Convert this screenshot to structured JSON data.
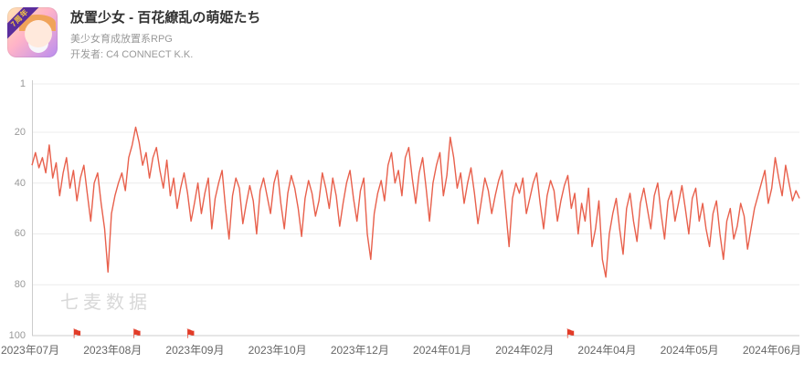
{
  "header": {
    "app_title": "放置少女 - 百花繚乱の萌姫たち",
    "app_subtitle": "美少女育成放置系RPG",
    "developer": "开发者: C4 CONNECT K.K.",
    "icon_badge": "7周年"
  },
  "watermark": "七麦数据",
  "chart_data": {
    "type": "line",
    "title": "",
    "y_ticks": [
      1,
      20,
      40,
      60,
      80,
      100
    ],
    "y_min": 1,
    "y_max": 100,
    "y_inverted": true,
    "grid": true,
    "x_tick_labels": [
      "2023年07月",
      "2023年08月",
      "2023年09月",
      "2023年10月",
      "2023年12月",
      "2024年01月",
      "2024年02月",
      "2024年04月",
      "2024年05月",
      "2024年06月"
    ],
    "line_color": "#e8604c",
    "flag_color": "#e23c28",
    "flag_positions": [
      0.057,
      0.135,
      0.205,
      0.7
    ],
    "series": [
      {
        "values": [
          33,
          28,
          34,
          30,
          36,
          25,
          38,
          32,
          45,
          36,
          30,
          42,
          35,
          47,
          38,
          33,
          44,
          55,
          40,
          36,
          48,
          58,
          75,
          52,
          45,
          40,
          36,
          43,
          30,
          25,
          18,
          24,
          33,
          28,
          38,
          30,
          26,
          35,
          42,
          31,
          45,
          38,
          50,
          42,
          36,
          44,
          55,
          48,
          40,
          52,
          44,
          38,
          58,
          46,
          40,
          35,
          50,
          62,
          45,
          38,
          42,
          56,
          48,
          41,
          47,
          60,
          43,
          38,
          45,
          52,
          40,
          35,
          48,
          58,
          44,
          37,
          42,
          50,
          61,
          46,
          39,
          44,
          53,
          47,
          36,
          42,
          50,
          38,
          45,
          57,
          48,
          40,
          35,
          46,
          55,
          43,
          38,
          60,
          70,
          52,
          44,
          39,
          47,
          33,
          28,
          40,
          35,
          45,
          30,
          26,
          38,
          48,
          36,
          30,
          42,
          55,
          40,
          33,
          28,
          45,
          37,
          22,
          30,
          42,
          36,
          48,
          40,
          34,
          44,
          56,
          47,
          38,
          43,
          52,
          45,
          39,
          35,
          50,
          65,
          46,
          40,
          44,
          38,
          52,
          46,
          40,
          36,
          48,
          58,
          45,
          39,
          43,
          55,
          47,
          41,
          37,
          50,
          44,
          60,
          48,
          55,
          42,
          65,
          58,
          47,
          70,
          77,
          60,
          52,
          46,
          58,
          68,
          50,
          44,
          55,
          63,
          48,
          42,
          50,
          58,
          45,
          40,
          52,
          62,
          47,
          43,
          55,
          48,
          41,
          50,
          60,
          46,
          42,
          55,
          48,
          58,
          65,
          52,
          47,
          60,
          70,
          55,
          50,
          62,
          57,
          48,
          53,
          66,
          58,
          50,
          45,
          40,
          35,
          48,
          42,
          30,
          38,
          45,
          33,
          40,
          47,
          43,
          46
        ]
      }
    ]
  }
}
